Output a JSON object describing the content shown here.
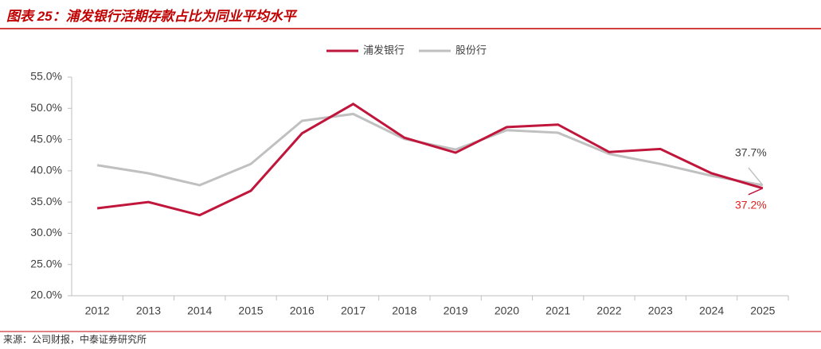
{
  "header": {
    "title": "图表 25：浦发银行活期存款占比为同业平均水平"
  },
  "chart_data": {
    "type": "line",
    "categories": [
      "2012",
      "2013",
      "2014",
      "2015",
      "2016",
      "2017",
      "2018",
      "2019",
      "2020",
      "2021",
      "2022",
      "2023",
      "2024",
      "2025"
    ],
    "series": [
      {
        "name": "浦发银行",
        "color": "#c0163c",
        "values": [
          34.0,
          35.0,
          32.9,
          36.8,
          46.0,
          50.7,
          45.3,
          42.9,
          47.0,
          47.4,
          43.0,
          43.5,
          39.6,
          37.2
        ],
        "value_labels": [
          null,
          null,
          null,
          null,
          null,
          null,
          null,
          null,
          null,
          null,
          null,
          null,
          null,
          "37.2%"
        ]
      },
      {
        "name": "股份行",
        "color": "#c0c0c0",
        "values": [
          40.9,
          39.6,
          37.7,
          41.1,
          48.0,
          49.1,
          45.1,
          43.4,
          46.5,
          46.1,
          42.7,
          41.1,
          39.2,
          37.7
        ],
        "value_labels": [
          null,
          null,
          null,
          null,
          null,
          null,
          null,
          null,
          null,
          null,
          null,
          null,
          null,
          "37.7%"
        ]
      }
    ],
    "ylim": [
      20,
      55
    ],
    "yticks": [
      {
        "value": 20,
        "label": "20.0%"
      },
      {
        "value": 25,
        "label": "25.0%"
      },
      {
        "value": 30,
        "label": "30.0%"
      },
      {
        "value": 35,
        "label": "35.0%"
      },
      {
        "value": 40,
        "label": "40.0%"
      },
      {
        "value": 45,
        "label": "45.0%"
      },
      {
        "value": 50,
        "label": "50.0%"
      },
      {
        "value": 55,
        "label": "55.0%"
      }
    ],
    "grid": false
  },
  "footer": {
    "source": "来源：公司财报，中泰证券研究所"
  }
}
